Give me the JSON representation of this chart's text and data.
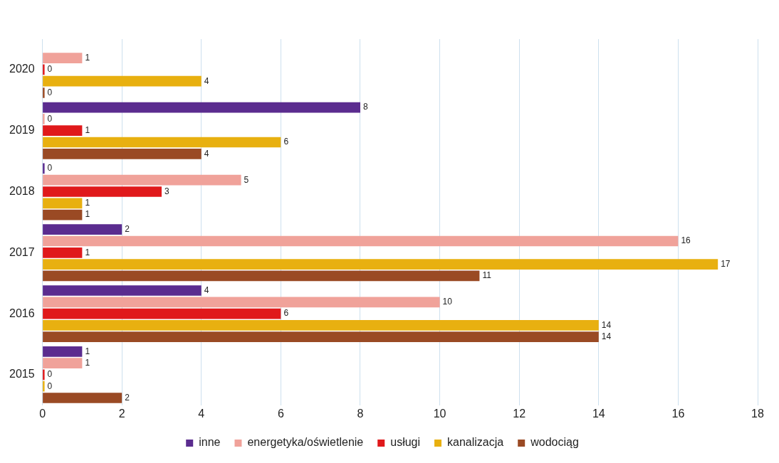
{
  "chart_data": {
    "type": "bar",
    "orientation": "horizontal",
    "categories": [
      "2020",
      "2019",
      "2018",
      "2017",
      "2016",
      "2015"
    ],
    "series": [
      {
        "name": "inne",
        "color": "#5b2c8f",
        "values": [
          null,
          8,
          0,
          2,
          4,
          1
        ]
      },
      {
        "name": "energetyka/oświetlenie",
        "color": "#f0a29a",
        "values": [
          1,
          0,
          5,
          16,
          10,
          1
        ]
      },
      {
        "name": "usługi",
        "color": "#e0191b",
        "values": [
          0,
          1,
          3,
          1,
          6,
          0
        ]
      },
      {
        "name": "kanalizacja",
        "color": "#e8b010",
        "values": [
          4,
          6,
          1,
          17,
          14,
          0
        ]
      },
      {
        "name": "wodociąg",
        "color": "#9a4a24",
        "values": [
          0,
          4,
          1,
          11,
          14,
          2
        ]
      }
    ],
    "xlim": [
      0,
      18
    ],
    "xticks": [
      0,
      2,
      4,
      6,
      8,
      10,
      12,
      14,
      16,
      18
    ],
    "grid": "x",
    "legend": "bottom",
    "data_labels": true
  }
}
